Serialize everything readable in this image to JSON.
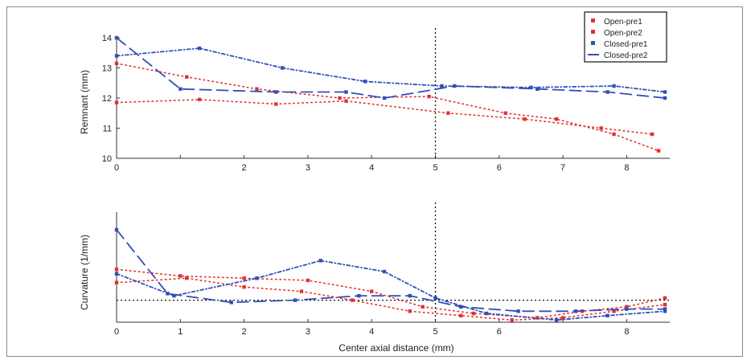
{
  "chart_data": [
    {
      "type": "line",
      "ylabel": "Remnant (mm)",
      "xlim": [
        0,
        8.6
      ],
      "ylim": [
        10,
        14
      ],
      "x_ticks": [
        "0",
        "",
        "2",
        "3",
        "4",
        "5",
        "6",
        "7",
        "8"
      ],
      "y_ticks": [
        "10",
        "11",
        "12",
        "13",
        "14"
      ],
      "vline_x": 5,
      "series": [
        {
          "name": "Open-pre1",
          "color": "#e53030",
          "style": "dotted",
          "x": [
            0,
            1.1,
            2.2,
            3.5,
            4.9,
            6.1,
            6.9,
            7.8,
            8.5
          ],
          "y": [
            13.15,
            12.7,
            12.3,
            12.0,
            12.05,
            11.5,
            11.3,
            10.8,
            10.25
          ]
        },
        {
          "name": "Open-pre2",
          "color": "#e53030",
          "style": "dotted",
          "x": [
            0,
            1.3,
            2.5,
            3.6,
            5.2,
            6.4,
            7.6,
            8.4
          ],
          "y": [
            11.85,
            11.95,
            11.8,
            11.9,
            11.5,
            11.3,
            11.0,
            10.8
          ]
        },
        {
          "name": "Closed-pre1",
          "color": "#3050b8",
          "style": "dash-dot",
          "x": [
            0,
            1.3,
            2.6,
            3.9,
            5.1,
            6.5,
            7.8,
            8.6
          ],
          "y": [
            13.4,
            13.65,
            13.0,
            12.55,
            12.4,
            12.35,
            12.4,
            12.2
          ]
        },
        {
          "name": "Closed-pre2",
          "color": "#3050b8",
          "style": "dashed",
          "x": [
            0,
            1.0,
            2.5,
            3.6,
            4.2,
            5.3,
            6.6,
            7.7,
            8.6
          ],
          "y": [
            14.0,
            12.3,
            12.2,
            12.2,
            12.0,
            12.4,
            12.3,
            12.2,
            12.0
          ]
        }
      ]
    },
    {
      "type": "line",
      "xlabel": "Center axial distance (mm)",
      "ylabel": "Curvature (1/mm)",
      "xlim": [
        0,
        8.6
      ],
      "ylim": [
        0,
        0.5
      ],
      "x_ticks": [
        "0",
        "1",
        "2",
        "3",
        "4",
        "5",
        "6",
        "",
        "8"
      ],
      "y_ticks": [],
      "vline_x": 5,
      "hline_y": 0.1,
      "series": [
        {
          "name": "Open-pre1",
          "color": "#e53030",
          "style": "dotted",
          "x": [
            0,
            1.0,
            2.0,
            3.0,
            4.0,
            4.8,
            5.6,
            6.6,
            7.3,
            8.0,
            8.6
          ],
          "y": [
            0.24,
            0.21,
            0.2,
            0.19,
            0.14,
            0.07,
            0.04,
            0.02,
            0.05,
            0.07,
            0.11
          ]
        },
        {
          "name": "Open-pre2",
          "color": "#e53030",
          "style": "dotted",
          "x": [
            0,
            1.1,
            2.0,
            2.9,
            3.7,
            4.6,
            5.4,
            6.2,
            7.0,
            7.8,
            8.6
          ],
          "y": [
            0.18,
            0.2,
            0.16,
            0.14,
            0.1,
            0.05,
            0.03,
            0.01,
            0.02,
            0.05,
            0.08
          ]
        },
        {
          "name": "Closed-pre1",
          "color": "#3050b8",
          "style": "dash-dot",
          "x": [
            0,
            0.9,
            2.2,
            3.2,
            4.2,
            5.0,
            5.8,
            6.9,
            7.7,
            8.6
          ],
          "y": [
            0.22,
            0.12,
            0.2,
            0.28,
            0.23,
            0.11,
            0.04,
            0.01,
            0.03,
            0.05
          ]
        },
        {
          "name": "Closed-pre2",
          "color": "#3050b8",
          "style": "dashed",
          "x": [
            0,
            0.8,
            1.8,
            2.8,
            3.8,
            4.6,
            5.4,
            6.3,
            7.2,
            8.0,
            8.6
          ],
          "y": [
            0.42,
            0.13,
            0.09,
            0.1,
            0.12,
            0.12,
            0.07,
            0.05,
            0.05,
            0.06,
            0.06
          ]
        }
      ]
    }
  ]
}
